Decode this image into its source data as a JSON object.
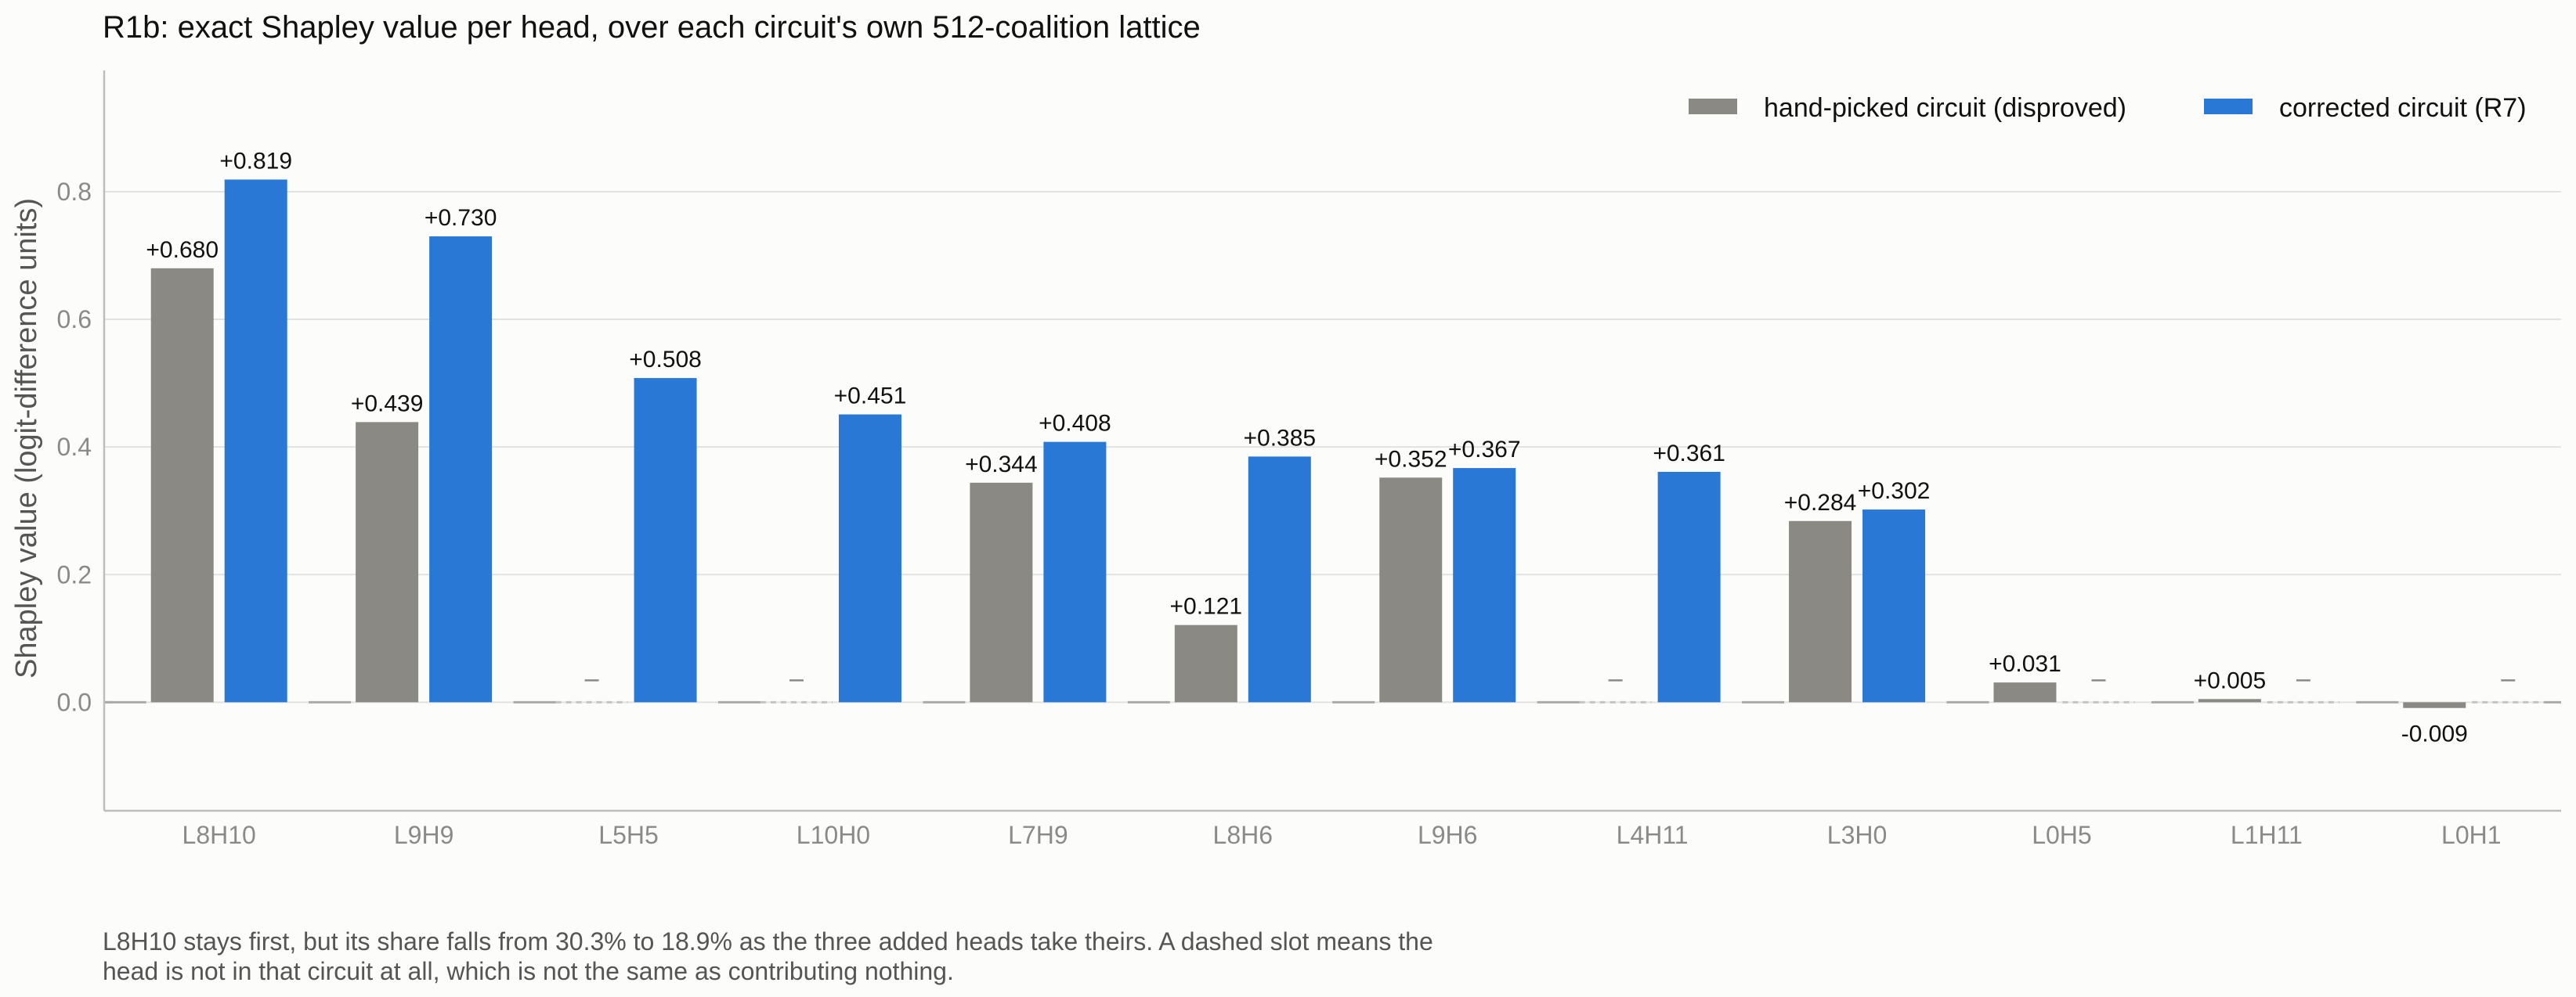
{
  "chart_data": {
    "type": "bar",
    "title": "R1b: exact Shapley value per head, over each circuit's own 512-coalition lattice",
    "ylabel": "Shapley value (logit-difference units)",
    "xlabel": "",
    "ylim": [
      -0.17,
      0.99
    ],
    "yticks": [
      0.0,
      0.2,
      0.4,
      0.6,
      0.8
    ],
    "ytick_labels": [
      "0.0",
      "0.2",
      "0.4",
      "0.6",
      "0.8"
    ],
    "grid": true,
    "legend_position": "top-right",
    "categories": [
      "L8H10",
      "L9H9",
      "L5H5",
      "L10H0",
      "L7H9",
      "L8H6",
      "L9H6",
      "L4H11",
      "L3H0",
      "L0H5",
      "L1H11",
      "L0H1"
    ],
    "series": [
      {
        "name": "hand-picked circuit (disproved)",
        "color": "#8a8983",
        "values": [
          0.68,
          0.439,
          null,
          null,
          0.344,
          0.121,
          0.352,
          null,
          0.284,
          0.031,
          0.005,
          -0.009
        ],
        "labels": [
          "+0.680",
          "+0.439",
          "–",
          "–",
          "+0.344",
          "+0.121",
          "+0.352",
          "–",
          "+0.284",
          "+0.031",
          "+0.005",
          "-0.009"
        ]
      },
      {
        "name": "corrected circuit (R7)",
        "color": "#2a78d6",
        "values": [
          0.819,
          0.73,
          0.508,
          0.451,
          0.408,
          0.385,
          0.367,
          0.361,
          0.302,
          null,
          null,
          null
        ],
        "labels": [
          "+0.819",
          "+0.730",
          "+0.508",
          "+0.451",
          "+0.408",
          "+0.385",
          "+0.367",
          "+0.361",
          "+0.302",
          "–",
          "–",
          "–"
        ]
      }
    ]
  },
  "caption": "L8H10 stays first, but its share falls from 30.3% to 18.9% as the three added heads take theirs. A dashed slot means the head is not in that circuit at all, which is not the same as contributing nothing."
}
